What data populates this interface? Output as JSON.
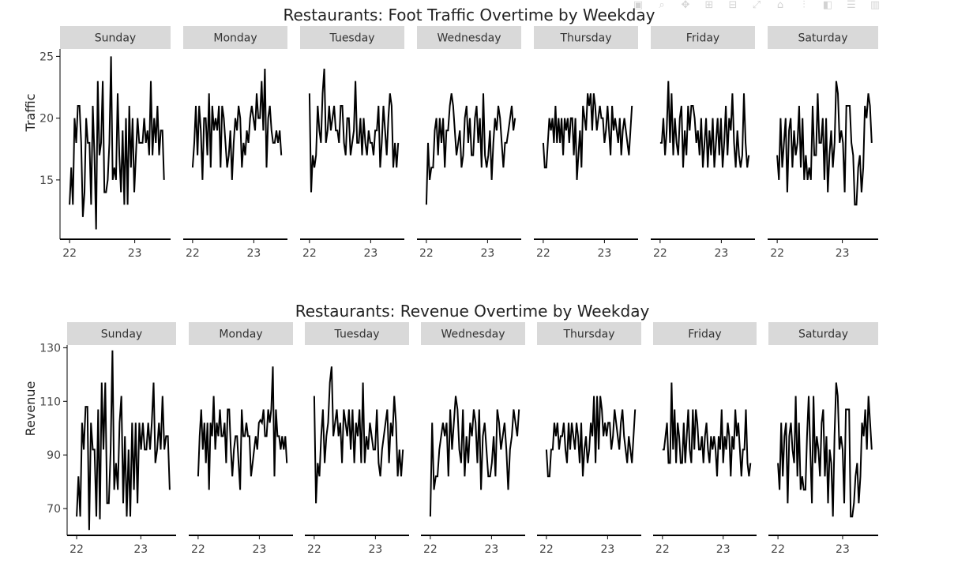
{
  "toolbar": {
    "icons": [
      "camera-icon",
      "zoom-icon",
      "pan-icon",
      "zoom-in-icon",
      "zoom-out-icon",
      "autoscale-icon",
      "reset-axes-icon",
      "spike-lines-icon",
      "hover-closest-icon",
      "hover-compare-icon",
      "plotly-logo-icon"
    ]
  },
  "colors": {
    "line": "#000000",
    "strip": "#d9d9d9",
    "axis": "#000000",
    "text": "#222222"
  },
  "chart_data": [
    {
      "type": "line",
      "title": "Restaurants: Foot Traffic Overtime by Weekday",
      "ylabel": "Traffic",
      "xlabel": "",
      "ylim": [
        10.2,
        25.6
      ],
      "yticks": [
        15,
        20,
        25
      ],
      "xlim": [
        21.95,
        23.55
      ],
      "xticks": [
        22,
        23
      ],
      "grid": false,
      "facets": [
        {
          "name": "Sunday",
          "x_start": 22.0,
          "x_end": 23.45,
          "values": [
            13,
            16,
            13,
            20,
            18,
            21,
            21,
            18,
            12,
            14,
            20,
            18,
            18,
            13,
            21,
            17,
            11,
            23,
            17,
            18,
            23,
            14,
            14,
            15,
            18,
            25,
            15,
            16,
            15,
            22,
            17,
            14,
            19,
            13,
            20,
            13,
            21,
            16,
            20,
            14,
            17,
            20,
            18,
            18,
            18,
            20,
            18,
            19,
            17,
            23,
            17,
            20,
            18,
            21,
            17,
            19,
            19,
            15
          ]
        },
        {
          "name": "Monday",
          "x_start": 22.0,
          "x_end": 23.45,
          "values": [
            16,
            18,
            21,
            17,
            21,
            19,
            15,
            20,
            20,
            17,
            22,
            16,
            21,
            19,
            20,
            19,
            21,
            16,
            21,
            20,
            18,
            16,
            17,
            19,
            15,
            18,
            20,
            19,
            21,
            20,
            16,
            18,
            17,
            19,
            18,
            20,
            21,
            20,
            19,
            22,
            20,
            20,
            23,
            19,
            24,
            16,
            20,
            21,
            19,
            18,
            18,
            19,
            18,
            19,
            17
          ]
        },
        {
          "name": "Tuesday",
          "x_start": 22.0,
          "x_end": 23.45,
          "values": [
            22,
            14,
            17,
            16,
            17,
            21,
            19,
            18,
            22,
            24,
            18,
            19,
            21,
            19,
            20,
            21,
            19,
            19,
            18,
            21,
            21,
            18,
            17,
            20,
            20,
            17,
            18,
            19,
            23,
            18,
            18,
            20,
            17,
            20,
            18,
            17,
            19,
            18,
            18,
            17,
            19,
            19,
            21,
            16,
            18,
            21,
            19,
            17,
            20,
            22,
            21,
            16,
            18,
            16,
            18
          ]
        },
        {
          "name": "Wednesday",
          "x_start": 22.0,
          "x_end": 23.45,
          "values": [
            13,
            18,
            15,
            16,
            16,
            19,
            20,
            17,
            20,
            18,
            20,
            16,
            19,
            19,
            21,
            22,
            21,
            19,
            17,
            18,
            19,
            16,
            17,
            20,
            21,
            18,
            20,
            17,
            17,
            20,
            21,
            18,
            20,
            16,
            22,
            17,
            16,
            17,
            19,
            15,
            18,
            20,
            19,
            21,
            20,
            18,
            16,
            18,
            18,
            19,
            20,
            21,
            19,
            20
          ]
        },
        {
          "name": "Thursday",
          "x_start": 22.0,
          "x_end": 23.45,
          "values": [
            18,
            16,
            16,
            18,
            20,
            19,
            20,
            18,
            21,
            18,
            20,
            18,
            20,
            17,
            20,
            19,
            20,
            18,
            20,
            20,
            17,
            20,
            15,
            17,
            19,
            16,
            21,
            20,
            19,
            22,
            21,
            22,
            19,
            22,
            21,
            19,
            20,
            21,
            20,
            20,
            18,
            19,
            21,
            19,
            17,
            21,
            19,
            20,
            19,
            18,
            20,
            17,
            19,
            20,
            19,
            18,
            17,
            19,
            21
          ]
        },
        {
          "name": "Friday",
          "x_start": 22.0,
          "x_end": 23.45,
          "values": [
            18,
            18,
            20,
            17,
            19,
            23,
            18,
            22,
            17,
            20,
            18,
            17,
            20,
            21,
            16,
            19,
            17,
            21,
            19,
            21,
            21,
            20,
            18,
            19,
            17,
            20,
            16,
            18,
            20,
            16,
            19,
            17,
            20,
            16,
            18,
            20,
            17,
            20,
            16,
            18,
            21,
            17,
            20,
            19,
            22,
            18,
            16,
            19,
            17,
            16,
            17,
            22,
            18,
            16,
            17
          ]
        },
        {
          "name": "Saturday",
          "x_start": 22.0,
          "x_end": 23.45,
          "values": [
            17,
            15,
            20,
            16,
            18,
            20,
            14,
            19,
            20,
            16,
            19,
            17,
            18,
            21,
            16,
            20,
            15,
            17,
            15,
            16,
            15,
            21,
            17,
            17,
            22,
            18,
            18,
            20,
            15,
            20,
            14,
            17,
            19,
            16,
            18,
            23,
            22,
            18,
            19,
            18,
            14,
            21,
            21,
            21,
            18,
            17,
            13,
            13,
            16,
            17,
            14,
            16,
            21,
            20,
            22,
            21,
            18
          ]
        }
      ]
    },
    {
      "type": "line",
      "title": "Restaurants: Revenue Overtime by Weekday",
      "ylabel": "Revenue",
      "xlabel": "",
      "ylim": [
        60,
        131
      ],
      "yticks": [
        70,
        90,
        110,
        130
      ],
      "xlim": [
        21.95,
        23.55
      ],
      "xticks": [
        22,
        23
      ],
      "grid": false,
      "facets": [
        {
          "name": "Sunday",
          "x_start": 22.0,
          "x_end": 23.45,
          "values": [
            67,
            82,
            67,
            102,
            92,
            108,
            108,
            62,
            102,
            92,
            92,
            67,
            107,
            66,
            117,
            92,
            117,
            72,
            72,
            92,
            129,
            77,
            87,
            77,
            102,
            112,
            72,
            97,
            67,
            92,
            67,
            102,
            77,
            102,
            72,
            102,
            92,
            102,
            92,
            92,
            102,
            92,
            102,
            117,
            87,
            92,
            102,
            92,
            112,
            92,
            97,
            97,
            77
          ]
        },
        {
          "name": "Monday",
          "x_start": 22.0,
          "x_end": 23.45,
          "values": [
            82,
            97,
            107,
            92,
            102,
            87,
            102,
            77,
            102,
            97,
            112,
            92,
            102,
            97,
            107,
            97,
            97,
            102,
            87,
            107,
            107,
            92,
            82,
            92,
            97,
            97,
            87,
            77,
            107,
            97,
            97,
            102,
            97,
            97,
            82,
            87,
            92,
            97,
            92,
            102,
            103,
            102,
            107,
            97,
            97,
            107,
            102,
            107,
            123,
            82,
            107,
            97,
            97,
            92,
            97,
            92,
            97,
            87
          ]
        },
        {
          "name": "Tuesday",
          "x_start": 22.0,
          "x_end": 23.45,
          "values": [
            112,
            72,
            87,
            82,
            97,
            107,
            87,
            97,
            102,
            117,
            123,
            97,
            102,
            107,
            97,
            102,
            87,
            107,
            102,
            97,
            107,
            92,
            107,
            87,
            102,
            97,
            107,
            87,
            117,
            87,
            97,
            92,
            102,
            97,
            92,
            92,
            107,
            87,
            82,
            92,
            97,
            102,
            107,
            87,
            102,
            97,
            112,
            102,
            82,
            92,
            82,
            92
          ]
        },
        {
          "name": "Wednesday",
          "x_start": 22.0,
          "x_end": 23.45,
          "values": [
            67,
            102,
            77,
            82,
            82,
            92,
            97,
            102,
            97,
            102,
            82,
            107,
            92,
            102,
            112,
            107,
            92,
            87,
            107,
            82,
            97,
            87,
            102,
            97,
            107,
            102,
            87,
            107,
            77,
            97,
            102,
            92,
            82,
            82,
            87,
            97,
            82,
            107,
            102,
            92,
            97,
            102,
            92,
            77,
            92,
            97,
            107,
            102,
            97,
            107
          ]
        },
        {
          "name": "Thursday",
          "x_start": 22.0,
          "x_end": 23.45,
          "values": [
            92,
            82,
            82,
            92,
            92,
            102,
            97,
            102,
            92,
            97,
            97,
            102,
            92,
            87,
            102,
            92,
            102,
            97,
            92,
            102,
            97,
            87,
            102,
            82,
            92,
            97,
            87,
            92,
            102,
            97,
            112,
            87,
            112,
            92,
            112,
            107,
            97,
            102,
            97,
            102,
            102,
            92,
            97,
            107,
            102,
            97,
            92,
            102,
            107,
            97,
            92,
            87,
            97,
            92,
            87,
            97,
            107
          ]
        },
        {
          "name": "Friday",
          "x_start": 22.0,
          "x_end": 23.45,
          "values": [
            92,
            92,
            97,
            102,
            87,
            87,
            117,
            92,
            107,
            87,
            102,
            97,
            87,
            87,
            102,
            87,
            97,
            107,
            92,
            87,
            107,
            92,
            107,
            102,
            92,
            92,
            97,
            87,
            97,
            102,
            92,
            87,
            97,
            92,
            97,
            92,
            82,
            97,
            92,
            107,
            87,
            97,
            92,
            102,
            97,
            82,
            97,
            92,
            107,
            97,
            102,
            92,
            82,
            92,
            92,
            107,
            87,
            82,
            87
          ]
        },
        {
          "name": "Saturday",
          "x_start": 22.0,
          "x_end": 23.45,
          "values": [
            87,
            77,
            102,
            82,
            97,
            102,
            72,
            97,
            102,
            92,
            87,
            112,
            82,
            102,
            77,
            82,
            77,
            77,
            97,
            112,
            92,
            72,
            112,
            87,
            97,
            92,
            82,
            102,
            107,
            82,
            97,
            72,
            92,
            87,
            67,
            97,
            117,
            112,
            92,
            97,
            92,
            72,
            107,
            107,
            107,
            67,
            67,
            72,
            82,
            87,
            72,
            82,
            102,
            97,
            107,
            92,
            112,
            102,
            92
          ]
        }
      ]
    }
  ]
}
